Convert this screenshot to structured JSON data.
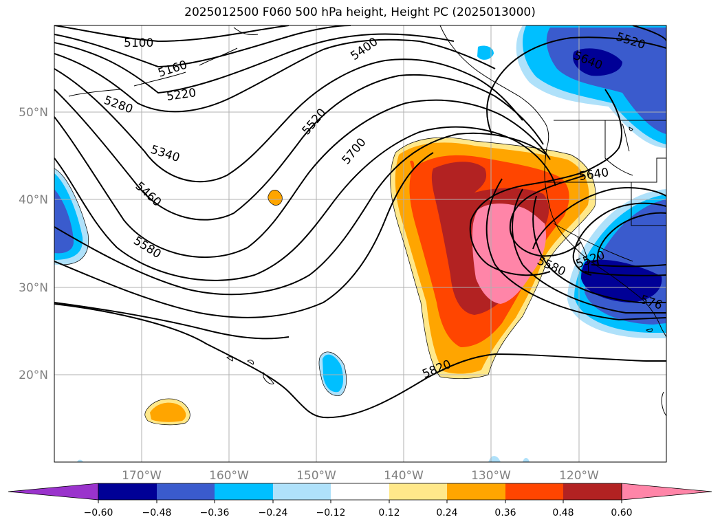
{
  "title": "2025012500 F060 500 hPa height, Height PC (2025013000)",
  "lat_ticks": [
    {
      "label": "50°N",
      "lat": 50
    },
    {
      "label": "40°N",
      "lat": 40
    },
    {
      "label": "30°N",
      "lat": 30
    },
    {
      "label": "20°N",
      "lat": 20
    }
  ],
  "lon_ticks": [
    {
      "label": "170°W",
      "lon": -170
    },
    {
      "label": "160°W",
      "lon": -160
    },
    {
      "label": "150°W",
      "lon": -150
    },
    {
      "label": "140°W",
      "lon": -140
    },
    {
      "label": "130°W",
      "lon": -130
    },
    {
      "label": "120°W",
      "lon": -120
    }
  ],
  "extent": {
    "lon_min": -180,
    "lon_max": -110,
    "lat_min": 10,
    "lat_max": 60
  },
  "contour_labels": [
    "5100",
    "5160",
    "5220",
    "5280",
    "5340",
    "5400",
    "5460",
    "5520",
    "5580",
    "5700",
    "5820",
    "5640",
    "5640",
    "5580",
    "5520",
    "5520",
    "576"
  ],
  "colorbar": {
    "ticks": [
      "−0.60",
      "−0.48",
      "−0.36",
      "−0.24",
      "−0.12",
      "0.12",
      "0.24",
      "0.36",
      "0.48",
      "0.60"
    ],
    "colors": [
      "#9a33cc",
      "#000096",
      "#3a5bcd",
      "#00bfff",
      "#afe1fa",
      "#ffffff",
      "#ffe88a",
      "#ffa500",
      "#ff4500",
      "#b22222",
      "#ff85a8"
    ]
  }
}
